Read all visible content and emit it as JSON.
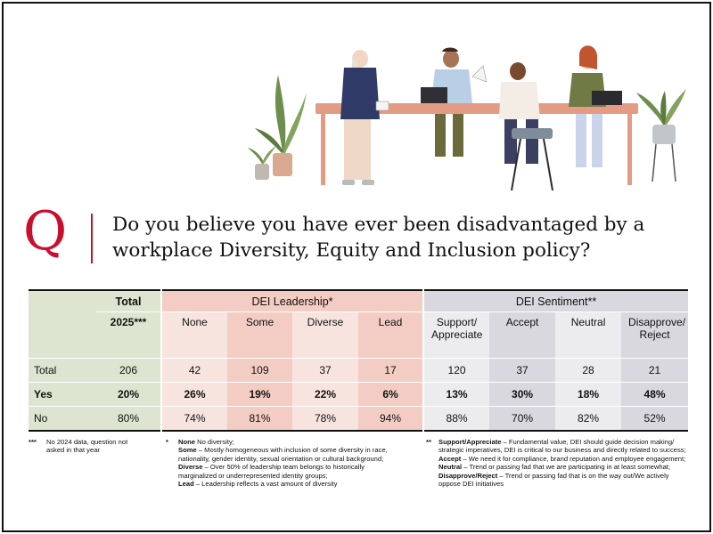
{
  "question": {
    "letter": "Q",
    "text": "Do you believe you have ever been disadvantaged by a workplace Diversity, Equity and Inclusion policy?"
  },
  "colors": {
    "accent": "#c8102e",
    "total_col": "#dde5d0",
    "leadership_light": "#f7e4df",
    "leadership_dark": "#f3ccc3",
    "sentiment_light": "#ececee",
    "sentiment_dark": "#d8d8de"
  },
  "chart_data": {
    "type": "table",
    "column_groups": [
      {
        "label": "DEI Leadership*",
        "columns": [
          "None",
          "Some",
          "Diverse",
          "Lead"
        ]
      },
      {
        "label": "DEI Sentiment**",
        "columns": [
          "Support/ Appreciate",
          "Accept",
          "Neutral",
          "Disapprove/ Reject"
        ]
      }
    ],
    "total_header": {
      "line1": "Total",
      "line2": "2025***"
    },
    "rows": [
      {
        "label": "Total",
        "bold": false,
        "values": [
          "206",
          "42",
          "109",
          "37",
          "17",
          "120",
          "37",
          "28",
          "21"
        ]
      },
      {
        "label": "Yes",
        "bold": true,
        "values": [
          "20%",
          "26%",
          "19%",
          "22%",
          "6%",
          "13%",
          "30%",
          "18%",
          "48%"
        ]
      },
      {
        "label": "No",
        "bold": false,
        "values": [
          "80%",
          "74%",
          "81%",
          "78%",
          "94%",
          "88%",
          "70%",
          "82%",
          "52%"
        ]
      }
    ]
  },
  "footnotes": {
    "f1": {
      "marker": "***",
      "text": "No 2024 data, question not asked in that year"
    },
    "f2": {
      "marker": "*",
      "none_term": "None",
      "none_text": " No diversity;",
      "some_term": "Some",
      "some_text": " – Mostly homogeneous with inclusion of some diversity in race, nationality, gender identity, sexual orientation or cultural background;",
      "diverse_term": "Diverse",
      "diverse_text": " – Over 50% of leadership team belongs to historically marginalized or underrepresented identity groups;",
      "lead_term": "Lead",
      "lead_text": " – Leadership reflects a vast amount of diversity"
    },
    "f3": {
      "marker": "**",
      "support_term": "Support/Appreciate",
      "support_text": " – Fundamental value, DEI should guide decision making/ strategic imperatives, DEI is critical to our business and directly related to success;",
      "accept_term": "Accept",
      "accept_text": " – We need it for compliance, brand reputation and employee engagement;",
      "neutral_term": "Neutral",
      "neutral_text": " – Trend or passing fad that we are participating in at least somewhat;",
      "disapprove_term": "Disapprove/Reject",
      "disapprove_text": " – Trend or passing fad that is on the way out/We actively oppose DEI initiatives"
    }
  }
}
